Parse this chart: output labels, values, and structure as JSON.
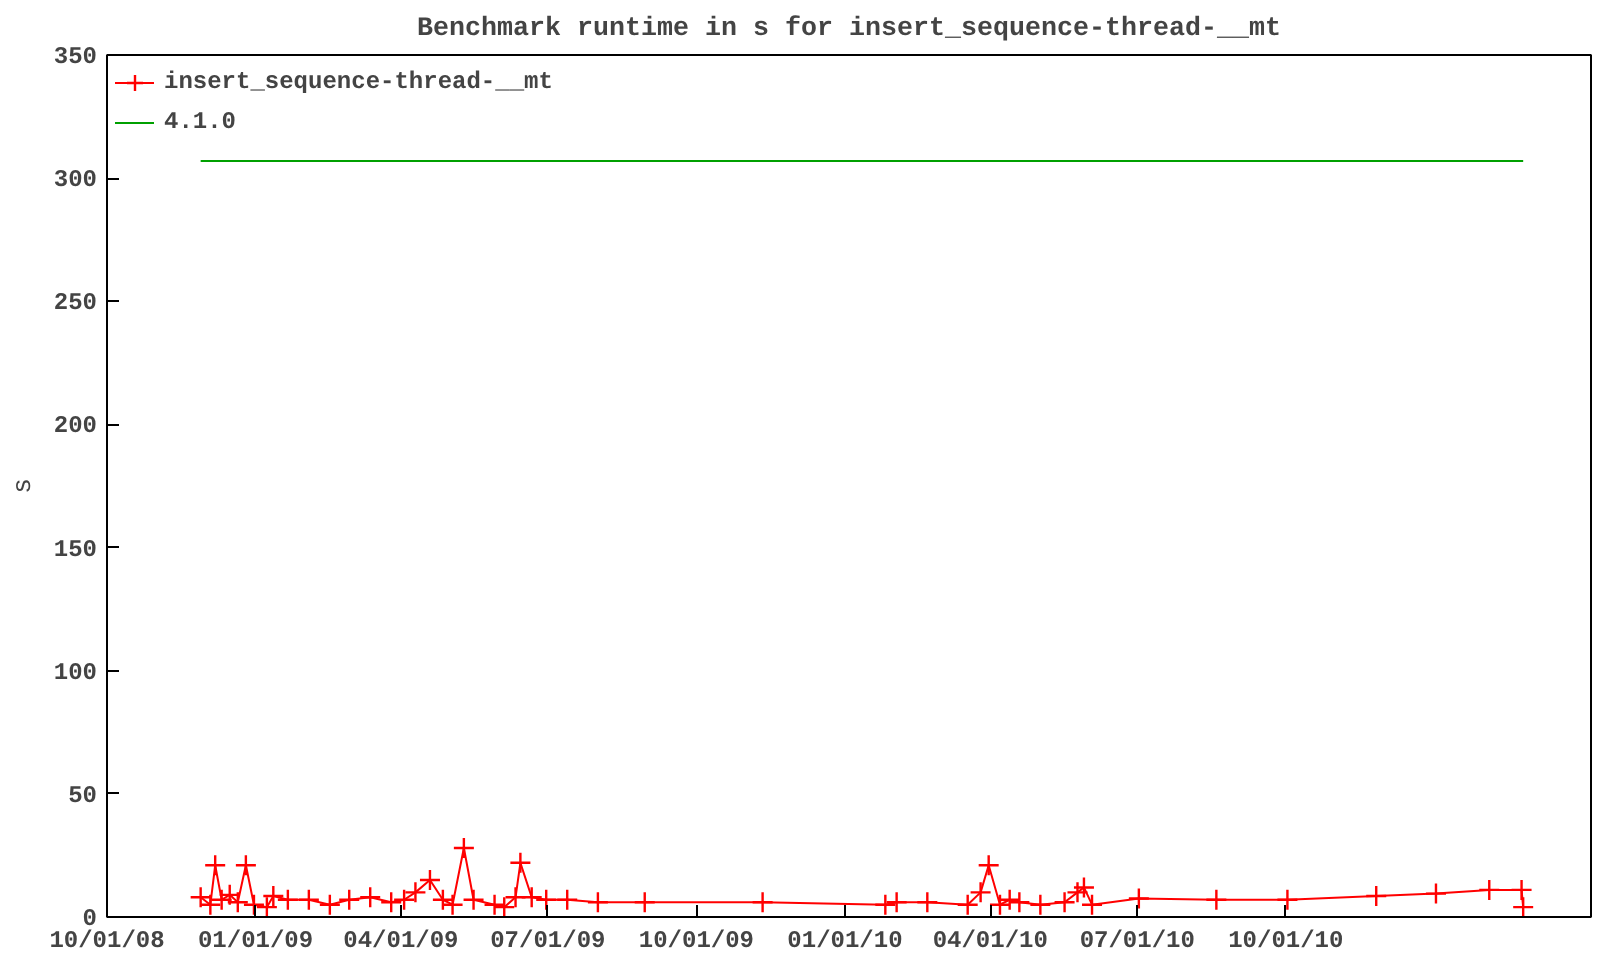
{
  "chart_data": {
    "type": "line",
    "title": "Benchmark runtime in s for insert_sequence-thread-__mt",
    "ylabel": "s",
    "xlim": [
      "2008-10-01",
      "2011-04-08"
    ],
    "ylim": [
      0,
      350
    ],
    "xticks": [
      {
        "value": "2008-10-01",
        "label": "10/01/08"
      },
      {
        "value": "2009-01-01",
        "label": "01/01/09"
      },
      {
        "value": "2009-04-01",
        "label": "04/01/09"
      },
      {
        "value": "2009-07-01",
        "label": "07/01/09"
      },
      {
        "value": "2009-10-01",
        "label": "10/01/09"
      },
      {
        "value": "2010-01-01",
        "label": "01/01/10"
      },
      {
        "value": "2010-04-01",
        "label": "04/01/10"
      },
      {
        "value": "2010-07-01",
        "label": "07/01/10"
      },
      {
        "value": "2010-10-01",
        "label": "10/01/10"
      }
    ],
    "yticks": [
      0,
      50,
      100,
      150,
      200,
      250,
      300,
      350
    ],
    "grid": false,
    "legend": "top left",
    "series": [
      {
        "name": "insert_sequence-thread-__mt",
        "color": "#ff0000",
        "marker": "cross",
        "x": [
          "2008-11-28",
          "2008-12-04",
          "2008-12-07",
          "2008-12-11",
          "2008-12-16",
          "2008-12-21",
          "2008-12-26",
          "2008-12-31",
          "2009-01-08",
          "2009-01-12",
          "2009-01-21",
          "2009-02-03",
          "2009-02-16",
          "2009-02-28",
          "2009-03-13",
          "2009-03-26",
          "2009-04-03",
          "2009-04-10",
          "2009-04-19",
          "2009-04-27",
          "2009-05-03",
          "2009-05-10",
          "2009-05-16",
          "2009-05-29",
          "2009-06-04",
          "2009-06-11",
          "2009-06-14",
          "2009-06-21",
          "2009-06-30",
          "2009-07-13",
          "2009-08-01",
          "2009-08-30",
          "2009-11-11",
          "2010-01-26",
          "2010-02-02",
          "2010-02-21",
          "2010-03-18",
          "2010-03-26",
          "2010-03-31",
          "2010-04-07",
          "2010-04-13",
          "2010-04-19",
          "2010-05-02",
          "2010-05-17",
          "2010-05-25",
          "2010-05-29",
          "2010-06-03",
          "2010-07-02",
          "2010-08-19",
          "2010-10-02",
          "2010-11-26",
          "2011-01-02",
          "2011-02-04",
          "2011-02-24",
          "2011-02-25"
        ],
        "values": [
          8,
          5,
          21,
          7,
          9,
          6,
          21,
          5,
          4,
          8.5,
          7,
          7,
          5,
          7,
          8,
          6,
          7,
          10,
          15,
          7,
          5,
          28,
          7,
          5,
          4,
          8,
          22,
          8,
          7,
          7,
          6,
          6,
          6,
          5,
          6,
          6,
          5,
          10,
          21,
          5,
          7,
          6,
          5,
          6,
          10,
          12,
          5,
          7.5,
          7,
          7,
          8.5,
          9.5,
          11,
          11,
          4
        ]
      },
      {
        "name": "4.1.0",
        "color": "#00a000",
        "marker": "none",
        "x": [
          "2008-11-28",
          "2011-02-25"
        ],
        "values": [
          307,
          307
        ]
      }
    ]
  }
}
